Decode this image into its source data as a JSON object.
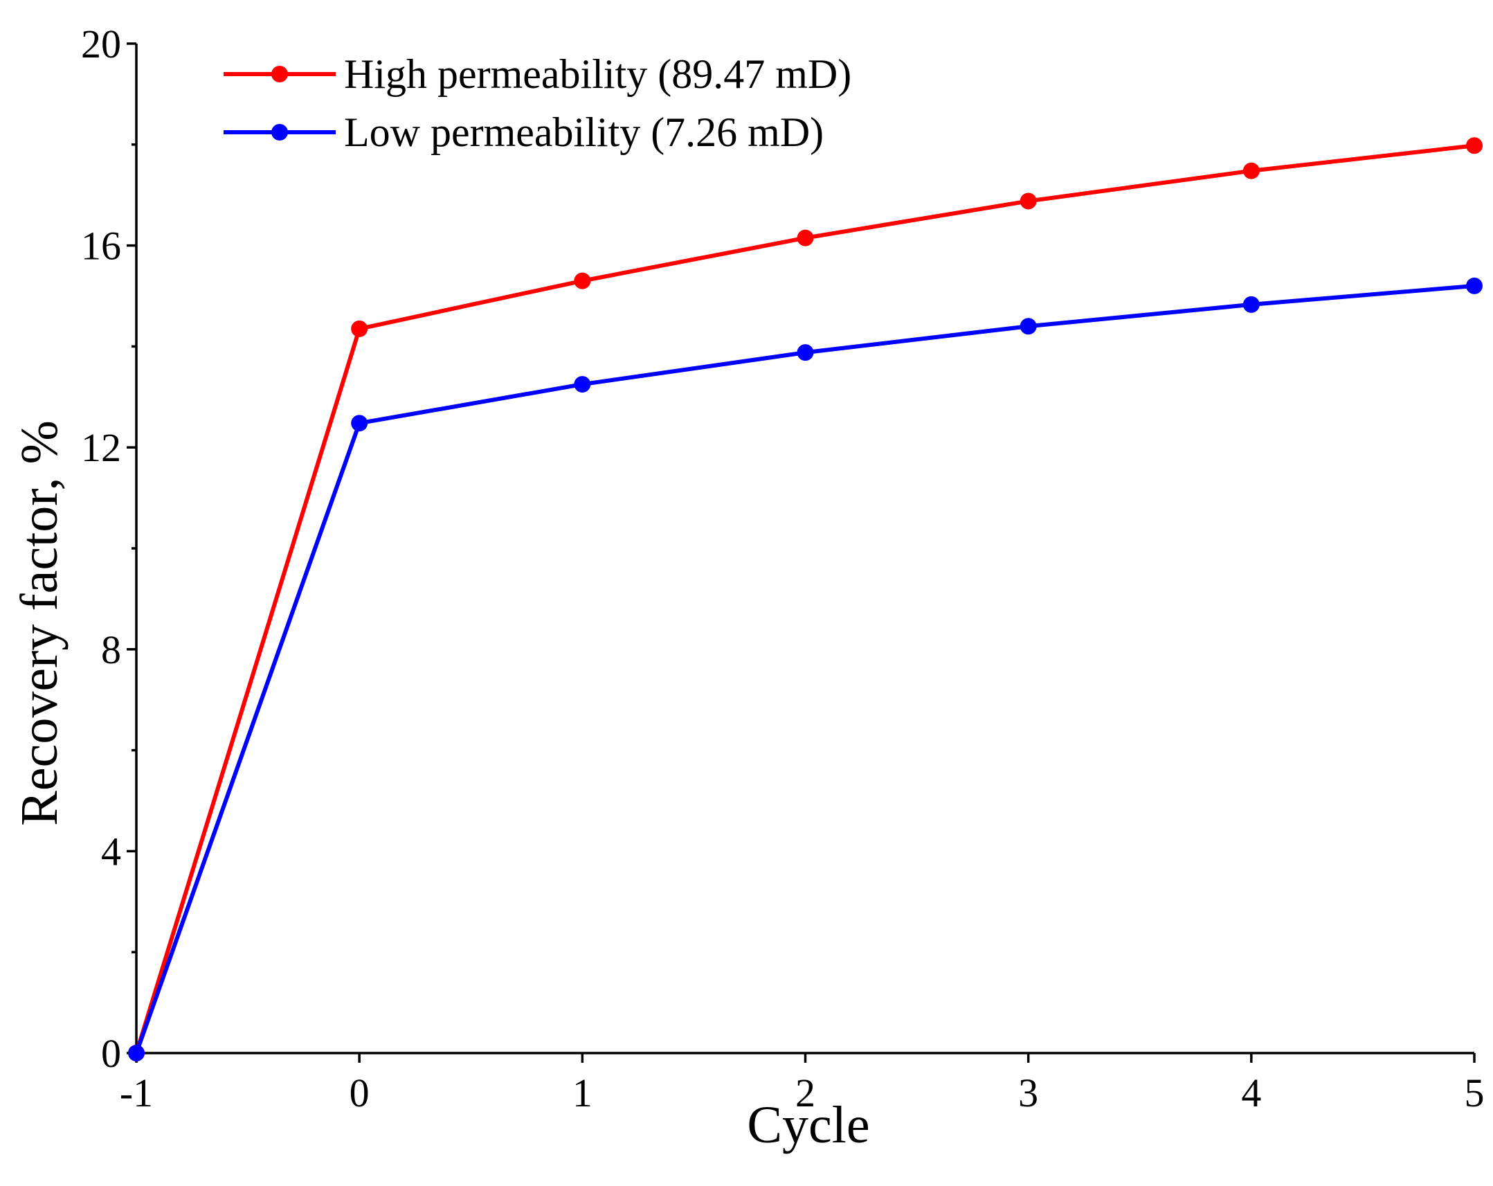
{
  "chart_data": {
    "type": "line",
    "title": "",
    "xlabel": "Cycle",
    "ylabel": "Recovery factor, %",
    "xlim": [
      -1,
      5
    ],
    "ylim": [
      0,
      20
    ],
    "x": [
      -1,
      0,
      1,
      2,
      3,
      4,
      5
    ],
    "x_ticks": [
      -1,
      0,
      1,
      2,
      3,
      4,
      5
    ],
    "x_tick_labels": [
      "-1",
      "0",
      "1",
      "2",
      "3",
      "4",
      "5"
    ],
    "y_ticks": [
      0,
      4,
      8,
      12,
      16,
      20
    ],
    "y_tick_labels": [
      "0",
      "4",
      "8",
      "12",
      "16",
      "20"
    ],
    "y_minor_ticks": [
      2,
      6,
      10,
      14,
      18
    ],
    "grid": false,
    "legend_position": "top-left",
    "series": [
      {
        "name": "High permeability (89.47 mD)",
        "color": "#ff0000",
        "marker": "circle",
        "values": [
          0,
          14.35,
          15.3,
          16.15,
          16.88,
          17.48,
          17.98
        ]
      },
      {
        "name": "Low permeability (7.26 mD)",
        "color": "#0000ff",
        "marker": "circle",
        "values": [
          0,
          12.48,
          13.25,
          13.88,
          14.4,
          14.83,
          15.2
        ]
      }
    ]
  }
}
